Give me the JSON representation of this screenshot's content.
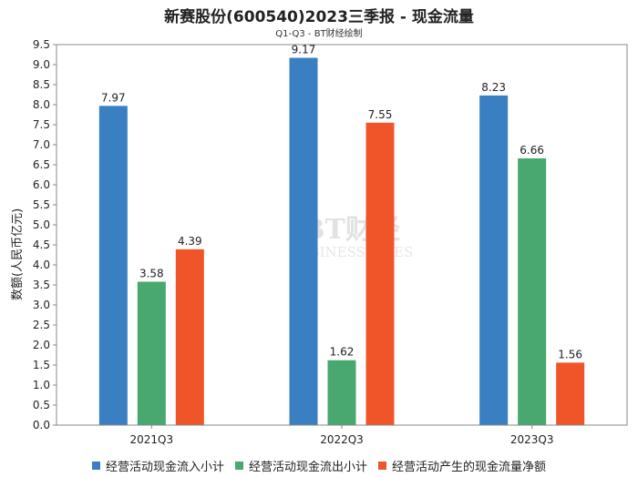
{
  "chart_data": {
    "type": "bar",
    "title": "新赛股份(600540)2023三季报 - 现金流量",
    "subtitle": "Q1-Q3 - BT财经绘制",
    "ylabel": "数额(人民币亿元)",
    "xlabel": "",
    "ylim": [
      0,
      9.5
    ],
    "ytick_step": 0.5,
    "categories": [
      "2021Q3",
      "2022Q3",
      "2023Q3"
    ],
    "series": [
      {
        "name": "经营活动现金流入小计",
        "color": "#3a7fc1",
        "values": [
          7.97,
          9.17,
          8.23
        ]
      },
      {
        "name": "经营活动现金流出小计",
        "color": "#48a86f",
        "values": [
          3.58,
          1.62,
          6.66
        ]
      },
      {
        "name": "经营活动产生的现金流量净额",
        "color": "#f0552a",
        "values": [
          4.39,
          7.55,
          1.56
        ]
      }
    ],
    "watermark": {
      "brand": "BT财经",
      "tagline": "BUSINESSTIMES"
    }
  }
}
